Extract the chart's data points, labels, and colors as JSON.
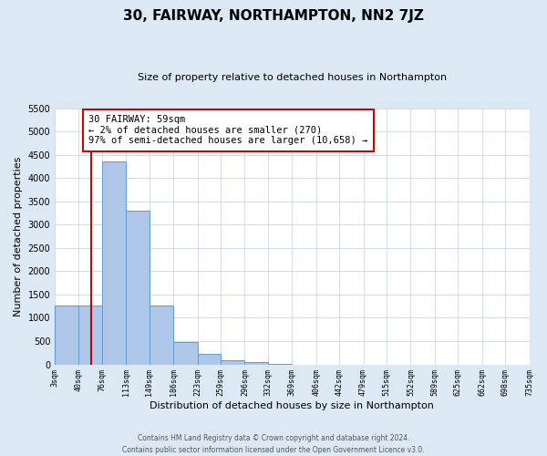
{
  "title": "30, FAIRWAY, NORTHAMPTON, NN2 7JZ",
  "subtitle": "Size of property relative to detached houses in Northampton",
  "xlabel": "Distribution of detached houses by size in Northampton",
  "ylabel": "Number of detached properties",
  "bin_edges": [
    3,
    40,
    76,
    113,
    149,
    186,
    223,
    259,
    296,
    332,
    369,
    406,
    442,
    479,
    515,
    552,
    589,
    625,
    662,
    698,
    735
  ],
  "bin_counts": [
    1270,
    1270,
    4350,
    3300,
    1270,
    480,
    230,
    90,
    50,
    10,
    0,
    0,
    0,
    0,
    0,
    0,
    0,
    0,
    0,
    0
  ],
  "bar_color": "#aec6e8",
  "bar_edge_color": "#5b9bd5",
  "property_line_x": 59,
  "property_line_color": "#cc0000",
  "annotation_text": "30 FAIRWAY: 59sqm\n← 2% of detached houses are smaller (270)\n97% of semi-detached houses are larger (10,658) →",
  "annotation_box_color": "#ffffff",
  "annotation_box_edge_color": "#cc0000",
  "ylim": [
    0,
    5500
  ],
  "yticks": [
    0,
    500,
    1000,
    1500,
    2000,
    2500,
    3000,
    3500,
    4000,
    4500,
    5000,
    5500
  ],
  "plot_bg_color": "#ffffff",
  "fig_bg_color": "#dce9f5",
  "grid_color": "#c8d8ec",
  "footer_text": "Contains HM Land Registry data © Crown copyright and database right 2024.\nContains public sector information licensed under the Open Government Licence v3.0.",
  "tick_labels": [
    "3sqm",
    "40sqm",
    "76sqm",
    "113sqm",
    "149sqm",
    "186sqm",
    "223sqm",
    "259sqm",
    "296sqm",
    "332sqm",
    "369sqm",
    "406sqm",
    "442sqm",
    "479sqm",
    "515sqm",
    "552sqm",
    "589sqm",
    "625sqm",
    "662sqm",
    "698sqm",
    "735sqm"
  ]
}
